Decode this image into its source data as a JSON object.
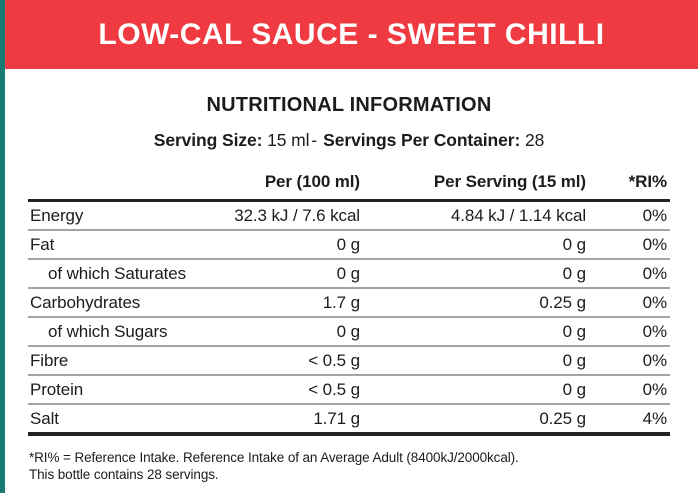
{
  "banner": {
    "title": "LOW-CAL SAUCE - SWEET CHILLI",
    "bg_color": "#ee3a40",
    "accent_color": "#177a73",
    "text_color": "#ffffff"
  },
  "section": {
    "title": "NUTRITIONAL INFORMATION"
  },
  "serving": {
    "serving_size_label": "Serving Size:",
    "serving_size_value": "15 ml",
    "separator": "-",
    "servings_per_container_label": "Servings Per Container:",
    "servings_per_container_value": "28"
  },
  "table": {
    "columns": [
      "",
      "Per (100 ml)",
      "Per Serving (15 ml)",
      "*RI%"
    ],
    "rows": [
      {
        "label": "Energy",
        "indent": false,
        "per_100ml": "32.3 kJ / 7.6 kcal",
        "per_serving": "4.84 kJ / 1.14 kcal",
        "ri_percent": "0%"
      },
      {
        "label": "Fat",
        "indent": false,
        "per_100ml": "0 g",
        "per_serving": "0 g",
        "ri_percent": "0%"
      },
      {
        "label": "of which Saturates",
        "indent": true,
        "per_100ml": "0 g",
        "per_serving": "0 g",
        "ri_percent": "0%"
      },
      {
        "label": "Carbohydrates",
        "indent": false,
        "per_100ml": "1.7 g",
        "per_serving": "0.25 g",
        "ri_percent": "0%"
      },
      {
        "label": "of which Sugars",
        "indent": true,
        "per_100ml": "0 g",
        "per_serving": "0 g",
        "ri_percent": "0%"
      },
      {
        "label": "Fibre",
        "indent": false,
        "per_100ml": "< 0.5 g",
        "per_serving": "0 g",
        "ri_percent": "0%"
      },
      {
        "label": "Protein",
        "indent": false,
        "per_100ml": "< 0.5 g",
        "per_serving": "0 g",
        "ri_percent": "0%"
      },
      {
        "label": "Salt",
        "indent": false,
        "per_100ml": "1.71 g",
        "per_serving": "0.25 g",
        "ri_percent": "4%"
      }
    ]
  },
  "footnote": {
    "line1": "*RI% = Reference Intake. Reference Intake of an Average Adult (8400kJ/2000kcal).",
    "line2": "This bottle contains 28 servings."
  }
}
